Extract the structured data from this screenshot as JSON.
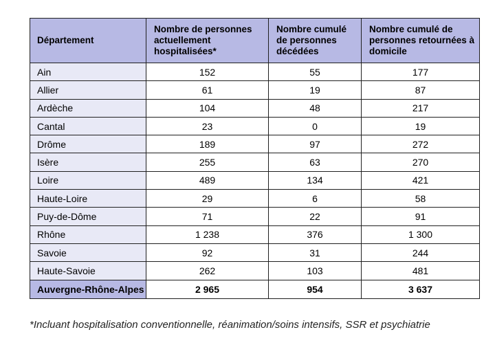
{
  "table": {
    "headers": [
      "Département",
      "Nombre de personnes actuellement hospitalisées*",
      "Nombre cumulé de personnes décédées",
      "Nombre cumulé de personnes retournées à domicile"
    ],
    "rows": [
      {
        "dept": "Ain",
        "hosp": "152",
        "deces": "55",
        "retour": "177"
      },
      {
        "dept": "Allier",
        "hosp": "61",
        "deces": "19",
        "retour": "87"
      },
      {
        "dept": "Ardèche",
        "hosp": "104",
        "deces": "48",
        "retour": "217"
      },
      {
        "dept": "Cantal",
        "hosp": "23",
        "deces": "0",
        "retour": "19"
      },
      {
        "dept": "Drôme",
        "hosp": "189",
        "deces": "97",
        "retour": "272"
      },
      {
        "dept": "Isère",
        "hosp": "255",
        "deces": "63",
        "retour": "270"
      },
      {
        "dept": "Loire",
        "hosp": "489",
        "deces": "134",
        "retour": "421"
      },
      {
        "dept": "Haute-Loire",
        "hosp": "29",
        "deces": "6",
        "retour": "58"
      },
      {
        "dept": "Puy-de-Dôme",
        "hosp": "71",
        "deces": "22",
        "retour": "91"
      },
      {
        "dept": "Rhône",
        "hosp": "1 238",
        "deces": "376",
        "retour": "1 300"
      },
      {
        "dept": "Savoie",
        "hosp": "92",
        "deces": "31",
        "retour": "244"
      },
      {
        "dept": "Haute-Savoie",
        "hosp": "262",
        "deces": "103",
        "retour": "481"
      }
    ],
    "total": {
      "dept": "Auvergne-Rhône-Alpes",
      "hosp": "2 965",
      "deces": "954",
      "retour": "3 637"
    }
  },
  "footnote": "*Incluant hospitalisation conventionnelle, réanimation/soins intensifs, SSR et psychiatrie",
  "colors": {
    "header_bg": "#b7b9e4",
    "dept_cell_bg": "#e8e9f6",
    "border": "#1f1f1f"
  }
}
